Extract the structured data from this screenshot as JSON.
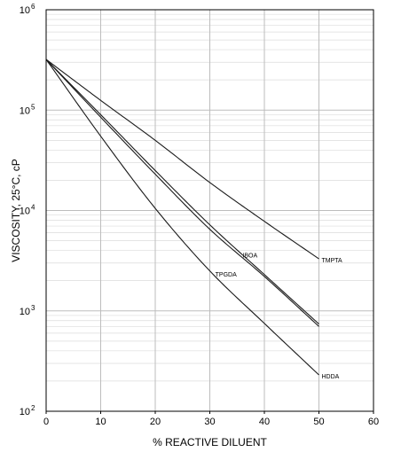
{
  "chart_data": {
    "type": "line",
    "xlabel": "% REACTIVE DILUENT",
    "ylabel": "VISCOSITY, 25°C, cP",
    "xlim": [
      0,
      60
    ],
    "ylim": [
      100,
      1000000
    ],
    "yscale": "log",
    "x_ticks": [
      "0",
      "10",
      "20",
      "30",
      "40",
      "50",
      "60"
    ],
    "y_ticks": [
      {
        "base": "10",
        "exp": "2"
      },
      {
        "base": "10",
        "exp": "3"
      },
      {
        "base": "10",
        "exp": "4"
      },
      {
        "base": "10",
        "exp": "5"
      },
      {
        "base": "10",
        "exp": "6"
      }
    ],
    "grid": true,
    "legend": "none (labels placed on curves)",
    "series": [
      {
        "name": "TMPTA",
        "x": [
          0,
          10,
          20,
          30,
          40,
          50
        ],
        "y": [
          320000,
          125000,
          50000,
          19000,
          7800,
          3300
        ]
      },
      {
        "name": "IBOA",
        "x": [
          0,
          10,
          20,
          30,
          40,
          50
        ],
        "y": [
          320000,
          90000,
          25000,
          7200,
          2300,
          740
        ]
      },
      {
        "name": "TPGDA",
        "x": [
          0,
          10,
          20,
          30,
          40,
          50
        ],
        "y": [
          320000,
          85000,
          23000,
          6500,
          2200,
          700
        ]
      },
      {
        "name": "HDDA",
        "x": [
          0,
          10,
          20,
          30,
          40,
          50
        ],
        "y": [
          320000,
          55000,
          10500,
          2500,
          750,
          230
        ]
      }
    ]
  }
}
